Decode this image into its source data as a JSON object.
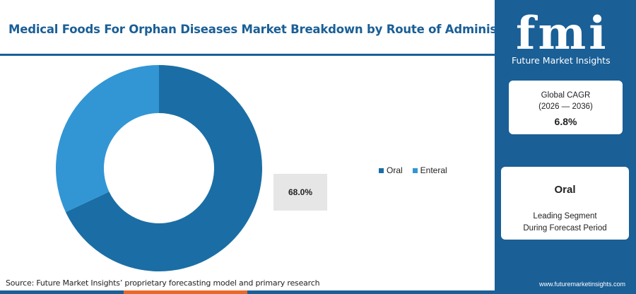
{
  "header": {
    "title": "Medical Foods For Orphan Diseases Market Breakdown by Route of Administration"
  },
  "chart_data": {
    "type": "pie",
    "variant": "donut",
    "title": "Medical Foods For Orphan Diseases Market Breakdown by Route of Administration",
    "categories": [
      "Oral",
      "Enteral"
    ],
    "values": [
      68.0,
      32.0
    ],
    "unit": "%",
    "colors": [
      "#1a6ea5",
      "#3296d4"
    ],
    "highlight_label": "68.0%",
    "legend_position": "right"
  },
  "legend": {
    "items": [
      {
        "label": "Oral",
        "color": "#1a6ea5"
      },
      {
        "label": "Enteral",
        "color": "#3296d4"
      }
    ]
  },
  "footer": {
    "source": "Source: Future Market Insights’ proprietary forecasting model and primary research",
    "bar_colors": [
      "#1a5f96",
      "#e8692c",
      "#1a5f96",
      "#1a5f96"
    ]
  },
  "sidebar": {
    "logo_text": "fmi",
    "logo_subtitle": "Future Market Insights",
    "cagr": {
      "label_line1": "Global CAGR",
      "label_line2": "(2026 — 2036)",
      "value": "6.8%"
    },
    "segment": {
      "name": "Oral",
      "desc_line1": "Leading Segment",
      "desc_line2": "During Forecast Period"
    },
    "website": "www.futuremarketinsights.com"
  },
  "colors": {
    "brand_blue": "#1a5f96",
    "accent_orange": "#e8692c"
  }
}
